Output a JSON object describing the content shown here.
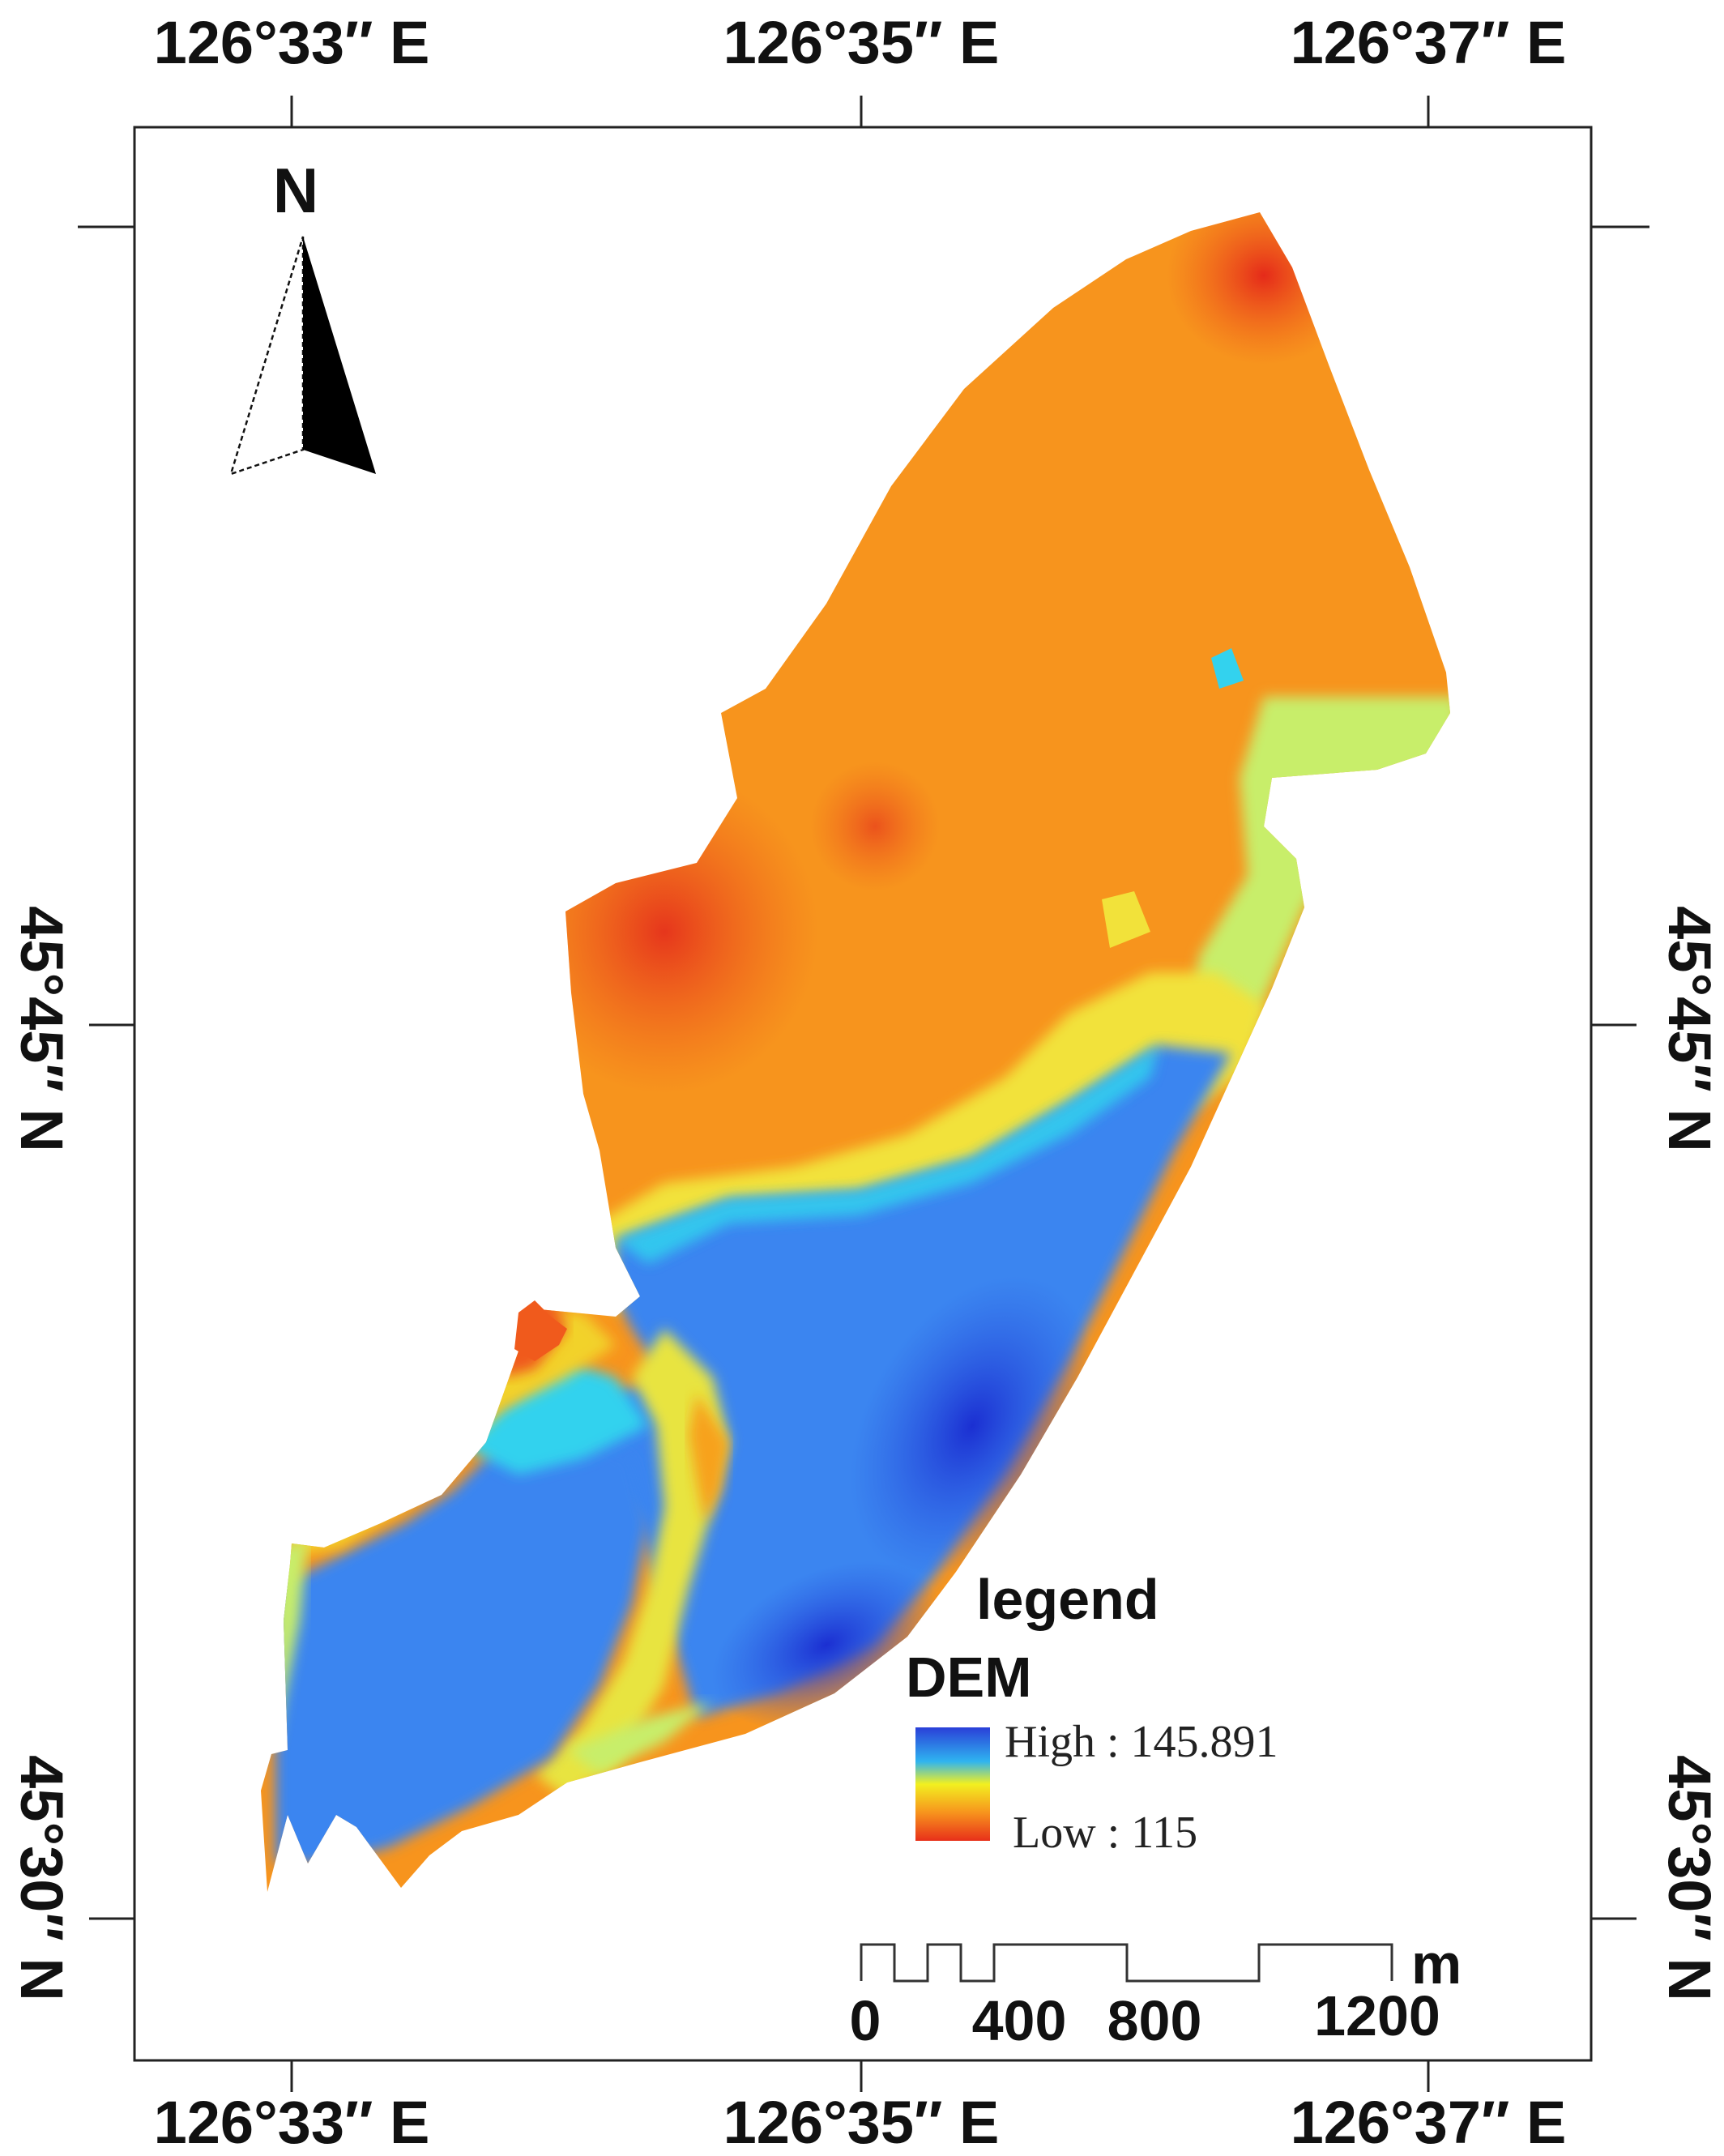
{
  "map": {
    "top_labels": [
      "126°33″ E",
      "126°35″ E",
      "126°37″ E"
    ],
    "bottom_labels": [
      "126°33″ E",
      "126°35″ E",
      "126°37″ E"
    ],
    "left_labels": [
      "45°45″ N",
      "45°30″ N"
    ],
    "right_labels": [
      "45°45″ N",
      "45°30″ N"
    ],
    "north_label": "N"
  },
  "legend": {
    "title": "legend",
    "layer": "DEM",
    "high_label": "High : 145.891",
    "low_label": "Low : 115",
    "high_color": "#2a3fd8",
    "mid_color": "#f2f020",
    "low_color": "#e8301a"
  },
  "scale_bar": {
    "unit": "m",
    "ticks": [
      "0",
      "400",
      "800",
      "1200"
    ]
  },
  "colors": {
    "orange": "#f7941d",
    "red": "#ea4e22",
    "yellow": "#f2e23a",
    "green": "#c8ee6a",
    "cyan": "#33d2ee",
    "blue": "#3a85f0",
    "deep_blue": "#1f3fd8"
  }
}
